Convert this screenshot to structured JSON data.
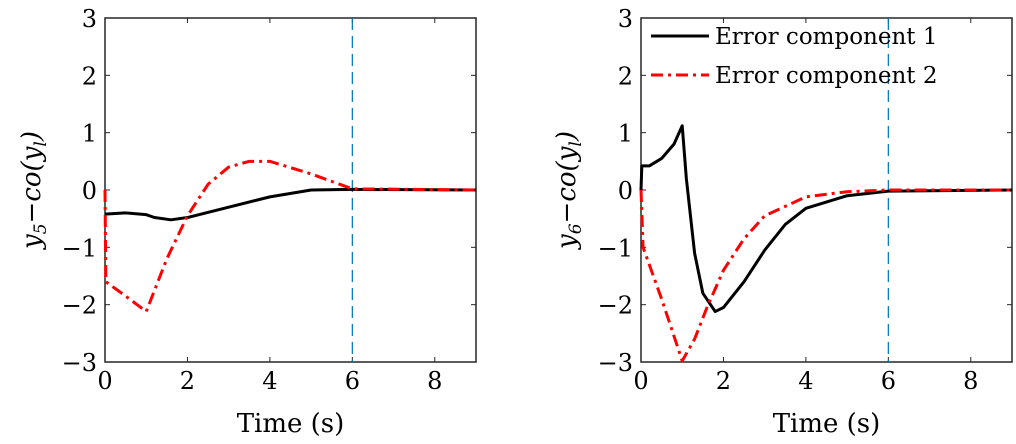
{
  "chart_data": [
    {
      "type": "line",
      "xlabel": "Time (s)",
      "ylabel": {
        "main": "y",
        "sub1": "5",
        "mid": "−co(y",
        "sub2": "l",
        "end": ")"
      },
      "xlim": [
        0,
        9
      ],
      "ylim": [
        -3,
        3
      ],
      "xticks": [
        0,
        2,
        4,
        6,
        8
      ],
      "yticks": [
        -3,
        -2,
        -1,
        0,
        1,
        2,
        3
      ],
      "vline": {
        "x": 6,
        "color": "#0072BD",
        "style": "dashed"
      },
      "series": [
        {
          "color": "#000000",
          "style": "solid",
          "x": [
            0,
            0.5,
            1,
            1.2,
            1.6,
            2,
            3,
            4,
            5,
            6,
            9
          ],
          "y": [
            -0.42,
            -0.4,
            -0.43,
            -0.48,
            -0.52,
            -0.48,
            -0.3,
            -0.12,
            0,
            0.01,
            0
          ]
        },
        {
          "color": "#FF0000",
          "style": "dashdot",
          "x": [
            0,
            0.02,
            0.5,
            1,
            1.5,
            2,
            2.5,
            3,
            3.5,
            4,
            5,
            6,
            9
          ],
          "y": [
            0,
            -1.6,
            -1.85,
            -2.12,
            -1.2,
            -0.45,
            0.1,
            0.4,
            0.5,
            0.5,
            0.28,
            0.02,
            0
          ]
        }
      ]
    },
    {
      "type": "line",
      "xlabel": "Time (s)",
      "ylabel": {
        "main": "y",
        "sub1": "6",
        "mid": "−co(y",
        "sub2": "l",
        "end": ")"
      },
      "xlim": [
        0,
        9
      ],
      "ylim": [
        -3,
        3
      ],
      "xticks": [
        0,
        2,
        4,
        6,
        8
      ],
      "yticks": [
        -3,
        -2,
        -1,
        0,
        1,
        2,
        3
      ],
      "vline": {
        "x": 6,
        "color": "#0072BD",
        "style": "dashed"
      },
      "legend": {
        "placement": "top-left",
        "entries": [
          "Error component 1",
          "Error component 2"
        ]
      },
      "series": [
        {
          "name": "Error component 1",
          "color": "#000000",
          "style": "solid",
          "x": [
            0,
            0.02,
            0.2,
            0.5,
            0.8,
            1,
            1.1,
            1.3,
            1.5,
            1.8,
            2,
            2.5,
            3,
            3.5,
            4,
            5,
            6,
            9
          ],
          "y": [
            0,
            0.42,
            0.42,
            0.55,
            0.8,
            1.12,
            0.2,
            -1.1,
            -1.8,
            -2.12,
            -2.05,
            -1.6,
            -1.05,
            -0.6,
            -0.32,
            -0.1,
            -0.02,
            0
          ]
        },
        {
          "name": "Error component 2",
          "color": "#FF0000",
          "style": "dashdot",
          "x": [
            0,
            0.05,
            0.5,
            1,
            1.3,
            1.6,
            2,
            2.5,
            3,
            4,
            5,
            6,
            9
          ],
          "y": [
            0,
            -1.0,
            -1.9,
            -2.98,
            -2.6,
            -2.05,
            -1.4,
            -0.85,
            -0.45,
            -0.12,
            -0.03,
            0,
            0
          ]
        }
      ]
    }
  ]
}
